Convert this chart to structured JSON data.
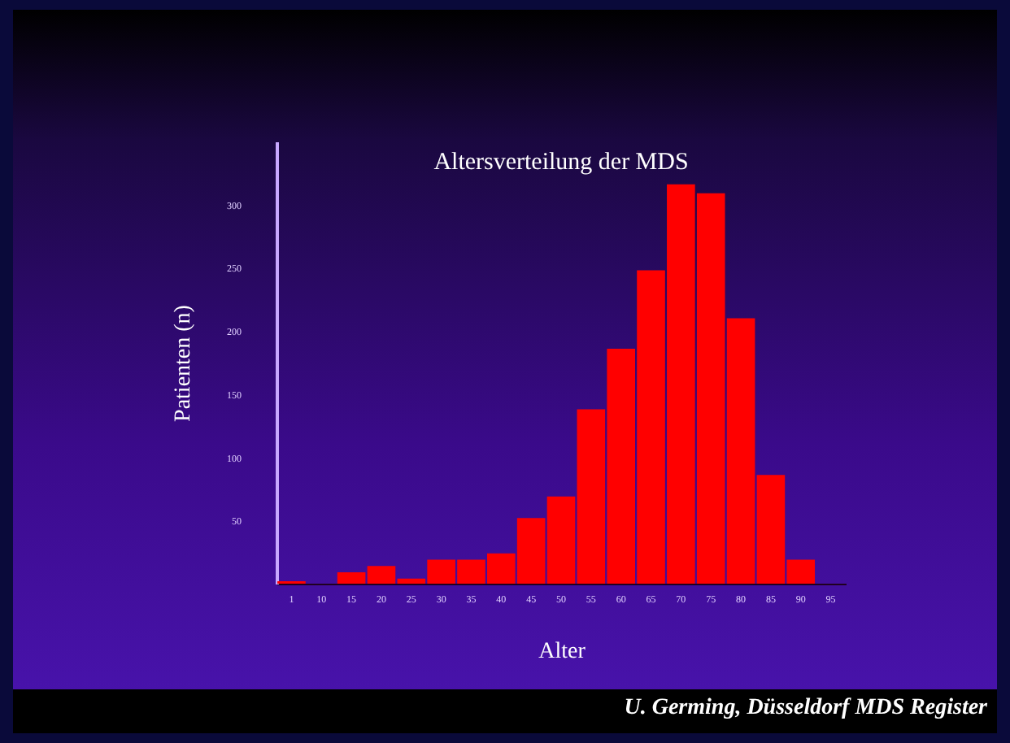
{
  "chart_data": {
    "type": "bar",
    "title": "Altersverteilung der MDS",
    "xlabel": "Alter",
    "ylabel": "Patienten (n)",
    "categories": [
      "1",
      "10",
      "15",
      "20",
      "25",
      "30",
      "35",
      "40",
      "45",
      "50",
      "55",
      "60",
      "65",
      "70",
      "75",
      "80",
      "85",
      "90",
      "95"
    ],
    "values": [
      2,
      0,
      9,
      14,
      4,
      19,
      19,
      24,
      52,
      69,
      138,
      186,
      248,
      316,
      309,
      210,
      86,
      19,
      0
    ],
    "color": "#ff0000",
    "ylim": [
      0,
      350
    ],
    "yticks": [
      50,
      100,
      150,
      200,
      250,
      300
    ],
    "grid": false,
    "annotations": [
      "U. Germing, Düsseldorf MDS Register"
    ]
  }
}
